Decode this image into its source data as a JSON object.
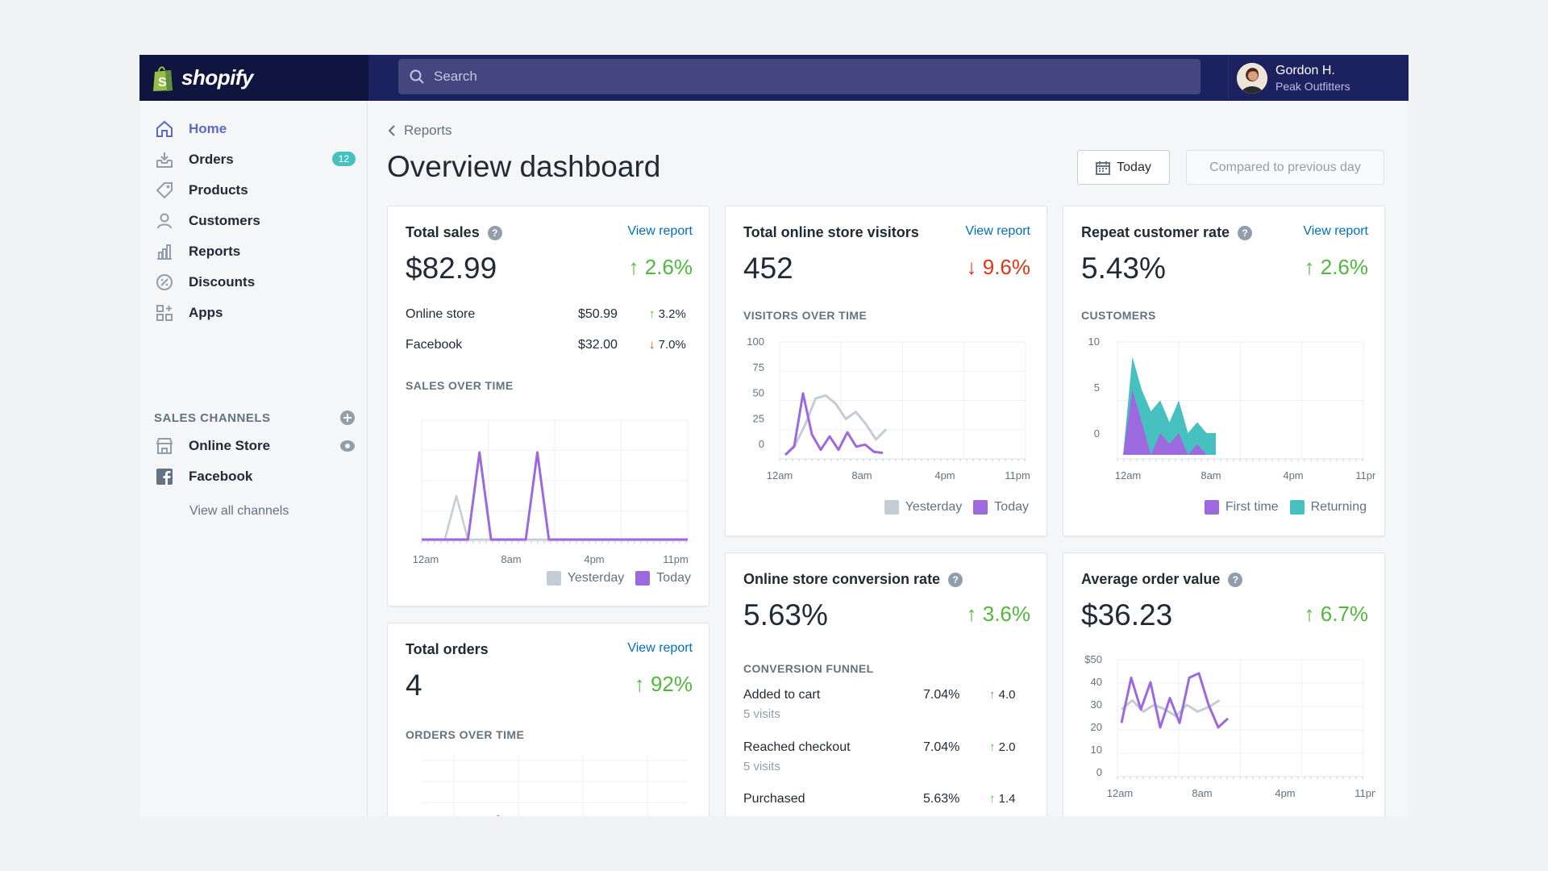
{
  "brand": {
    "name": "shopify"
  },
  "search": {
    "placeholder": "Search"
  },
  "user": {
    "name": "Gordon H.",
    "shop": "Peak Outfitters"
  },
  "sidebar": {
    "items": [
      {
        "label": "Home",
        "icon": "home-icon",
        "active": true
      },
      {
        "label": "Orders",
        "icon": "orders-icon",
        "badge": "12"
      },
      {
        "label": "Products",
        "icon": "tag-icon"
      },
      {
        "label": "Customers",
        "icon": "customer-icon"
      },
      {
        "label": "Reports",
        "icon": "reports-icon"
      },
      {
        "label": "Discounts",
        "icon": "discount-icon"
      },
      {
        "label": "Apps",
        "icon": "apps-icon"
      }
    ],
    "section_title": "SALES CHANNELS",
    "channels": [
      {
        "label": "Online Store",
        "icon": "store-icon"
      },
      {
        "label": "Facebook",
        "icon": "facebook-icon"
      }
    ],
    "view_all": "View all channels"
  },
  "breadcrumb": "Reports",
  "page_title": "Overview dashboard",
  "date_button": "Today",
  "compare_button": "Compared to previous day",
  "colors": {
    "purple": "#9c6ade",
    "gray": "#c4cdd5",
    "teal": "#47c1bf",
    "up": "#50b83c",
    "down": "#de3618",
    "link": "#006fbb"
  },
  "cards": {
    "total_sales": {
      "title": "Total sales",
      "view": "View report",
      "value": "$82.99",
      "delta": "2.6%",
      "direction": "up",
      "rows": [
        {
          "label": "Online store",
          "value": "$50.99",
          "delta": "3.2%",
          "direction": "up"
        },
        {
          "label": "Facebook",
          "value": "$32.00",
          "delta": "7.0%",
          "direction": "down"
        }
      ],
      "chart_title": "SALES OVER TIME",
      "x_labels": [
        "12am",
        "8am",
        "4pm",
        "11pm"
      ],
      "legend": [
        "Yesterday",
        "Today"
      ]
    },
    "visitors": {
      "title": "Total online store visitors",
      "view": "View report",
      "value": "452",
      "delta": "9.6%",
      "direction": "down",
      "chart_title": "VISITORS OVER TIME",
      "y_labels": [
        "100",
        "75",
        "50",
        "25",
        "0"
      ],
      "x_labels": [
        "12am",
        "8am",
        "4pm",
        "11pm"
      ],
      "legend": [
        "Yesterday",
        "Today"
      ]
    },
    "repeat": {
      "title": "Repeat customer rate",
      "view": "View report",
      "value": "5.43%",
      "delta": "2.6%",
      "direction": "up",
      "chart_title": "CUSTOMERS",
      "y_labels": [
        "10",
        "5",
        "0"
      ],
      "x_labels": [
        "12am",
        "8am",
        "4pm",
        "11pm"
      ],
      "legend": [
        "First time",
        "Returning"
      ]
    },
    "orders": {
      "title": "Total orders",
      "view": "View report",
      "value": "4",
      "delta": "92%",
      "direction": "up",
      "chart_title": "ORDERS OVER TIME"
    },
    "conversion": {
      "title": "Online store conversion rate",
      "value": "5.63%",
      "delta": "3.6%",
      "direction": "up",
      "funnel_title": "CONVERSION FUNNEL",
      "rows": [
        {
          "label": "Added to cart",
          "sub": "5 visits",
          "pct": "7.04%",
          "delta": "4.0"
        },
        {
          "label": "Reached checkout",
          "sub": "5 visits",
          "pct": "7.04%",
          "delta": "2.0"
        },
        {
          "label": "Purchased",
          "pct": "5.63%",
          "delta": "1.4"
        }
      ]
    },
    "aov": {
      "title": "Average order value",
      "value": "$36.23",
      "delta": "6.7%",
      "direction": "up",
      "y_labels": [
        "$50",
        "40",
        "30",
        "20",
        "10",
        "0"
      ],
      "x_labels": [
        "12am",
        "8am",
        "4pm",
        "11pm"
      ]
    }
  },
  "chart_data": [
    {
      "type": "line",
      "title": "SALES OVER TIME",
      "x": [
        0,
        1,
        2,
        3,
        4,
        5,
        6,
        7,
        8,
        9,
        10,
        11,
        12,
        13,
        14,
        15,
        16,
        17,
        18,
        19,
        20,
        21,
        22,
        23
      ],
      "series": [
        {
          "name": "Yesterday",
          "values": [
            0,
            0,
            0,
            6,
            0,
            0,
            0,
            0,
            0,
            0,
            0,
            0,
            0,
            0,
            0,
            0,
            0,
            0,
            0,
            0,
            0,
            0,
            0,
            0
          ]
        },
        {
          "name": "Today",
          "values": [
            0,
            0,
            0,
            0,
            0,
            12,
            0,
            0,
            0,
            0,
            12,
            0,
            0,
            0,
            0,
            0,
            0,
            0,
            0,
            0,
            0,
            0,
            0,
            0
          ]
        }
      ]
    },
    {
      "type": "line",
      "title": "VISITORS OVER TIME",
      "ylim": [
        0,
        100
      ],
      "series": [
        {
          "name": "Yesterday",
          "values": [
            0,
            10,
            30,
            55,
            58,
            50,
            35,
            42,
            30,
            15,
            25
          ]
        },
        {
          "name": "Today",
          "values": [
            0,
            8,
            60,
            20,
            5,
            18,
            5,
            22,
            8,
            10,
            3,
            2
          ]
        }
      ]
    },
    {
      "type": "area",
      "title": "CUSTOMERS",
      "ylim": [
        0,
        10
      ],
      "series": [
        {
          "name": "First time",
          "values": [
            0,
            6,
            3,
            0,
            2,
            1,
            2,
            0,
            1,
            0
          ]
        },
        {
          "name": "Returning",
          "values": [
            0,
            9,
            6,
            4,
            5,
            3,
            5,
            2,
            3,
            2,
            2
          ]
        }
      ]
    },
    {
      "type": "line",
      "title": "Average order value",
      "ylim": [
        0,
        50
      ],
      "series": [
        {
          "name": "Yesterday",
          "values": [
            28,
            32,
            27,
            30,
            28,
            25,
            30,
            27,
            29,
            32
          ]
        },
        {
          "name": "Today",
          "values": [
            22,
            42,
            28,
            40,
            20,
            33,
            22,
            42,
            44,
            30,
            20,
            24
          ]
        }
      ]
    }
  ]
}
